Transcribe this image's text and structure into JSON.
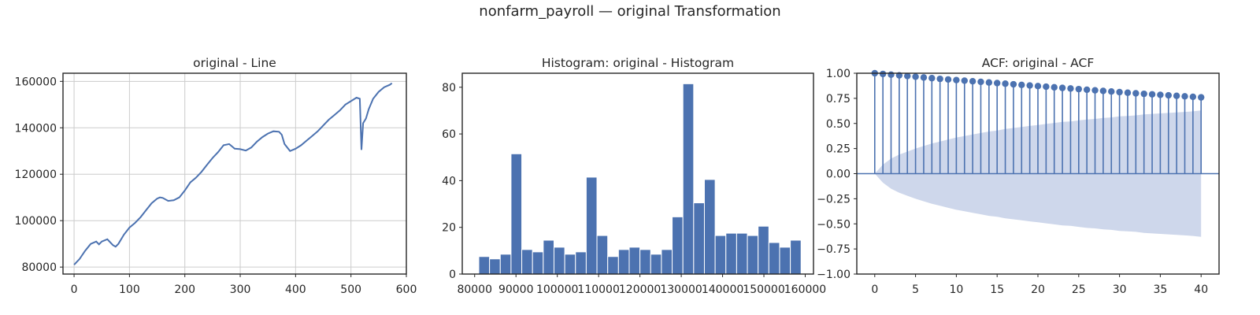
{
  "suptitle": "nonfarm_payroll — original Transformation",
  "colors": {
    "line": "#4c72b0",
    "bar": "#4c72b0",
    "band": "#c9d3e9",
    "grid": "#cccccc",
    "axis": "#262626"
  },
  "chart_data": [
    {
      "type": "line",
      "title": "original - Line",
      "xlim": [
        -20,
        600
      ],
      "ylim": [
        77000,
        163500
      ],
      "xticks": [
        0,
        100,
        200,
        300,
        400,
        500,
        600
      ],
      "yticks": [
        80000,
        100000,
        120000,
        140000,
        160000
      ],
      "grid": true,
      "series": [
        {
          "x": [
            0,
            10,
            20,
            30,
            40,
            45,
            50,
            60,
            70,
            75,
            80,
            90,
            100,
            110,
            120,
            130,
            140,
            150,
            155,
            160,
            170,
            180,
            190,
            200,
            210,
            220,
            230,
            240,
            250,
            260,
            270,
            280,
            290,
            300,
            310,
            320,
            330,
            340,
            350,
            360,
            370,
            375,
            380,
            390,
            400,
            410,
            420,
            430,
            440,
            450,
            460,
            470,
            480,
            490,
            500,
            510,
            516,
            519,
            522,
            527,
            532,
            540,
            550,
            560,
            570,
            574
          ],
          "y": [
            81000,
            83500,
            87000,
            90000,
            91000,
            89800,
            91000,
            92000,
            89500,
            88800,
            90000,
            94000,
            97000,
            99000,
            101500,
            104500,
            107500,
            109500,
            110000,
            109800,
            108500,
            108800,
            110000,
            113000,
            116500,
            118500,
            121000,
            124000,
            127000,
            129500,
            132500,
            133000,
            131000,
            130800,
            130200,
            131500,
            134000,
            136000,
            137500,
            138500,
            138300,
            137000,
            133000,
            130000,
            131000,
            132500,
            134500,
            136500,
            138500,
            141000,
            143500,
            145500,
            147500,
            150000,
            151500,
            153000,
            152500,
            130500,
            142000,
            144000,
            148000,
            152500,
            155500,
            157500,
            158500,
            159200
          ]
        }
      ]
    },
    {
      "type": "bar",
      "title": "Histogram: original - Histogram",
      "xlim": [
        77000,
        162000
      ],
      "ylim": [
        0,
        86
      ],
      "xticks": [
        80000,
        90000,
        100000,
        110000,
        120000,
        130000,
        140000,
        150000,
        160000
      ],
      "yticks": [
        0,
        20,
        40,
        60,
        80
      ],
      "grid": false,
      "bin_start": 81000,
      "bin_width": 2600,
      "values": [
        7.5,
        6.5,
        8.5,
        51.5,
        10.5,
        9.5,
        14.5,
        11.5,
        8.5,
        9.5,
        41.5,
        16.5,
        7.5,
        10.5,
        11.5,
        10.5,
        8.5,
        10.5,
        24.5,
        81.5,
        30.5,
        40.5,
        16.5,
        17.5,
        17.5,
        16.5,
        20.5,
        13.5,
        11.5,
        14.5
      ]
    },
    {
      "type": "scatter",
      "title": "ACF: original - ACF",
      "xlim": [
        -2.2,
        42.2
      ],
      "ylim": [
        -1.0,
        1.0
      ],
      "xticks": [
        0,
        5,
        10,
        15,
        20,
        25,
        30,
        35,
        40
      ],
      "yticks": [
        -1.0,
        -0.75,
        -0.5,
        -0.25,
        0.0,
        0.25,
        0.5,
        0.75,
        1.0
      ],
      "yticklabels": [
        "−1.00",
        "−0.75",
        "−0.50",
        "−0.25",
        "0.00",
        "0.25",
        "0.50",
        "0.75",
        "1.00"
      ],
      "grid": false,
      "lags": [
        0,
        1,
        2,
        3,
        4,
        5,
        6,
        7,
        8,
        9,
        10,
        11,
        12,
        13,
        14,
        15,
        16,
        17,
        18,
        19,
        20,
        21,
        22,
        23,
        24,
        25,
        26,
        27,
        28,
        29,
        30,
        31,
        32,
        33,
        34,
        35,
        36,
        37,
        38,
        39,
        40
      ],
      "values": [
        1.0,
        0.993,
        0.986,
        0.979,
        0.972,
        0.965,
        0.958,
        0.951,
        0.944,
        0.938,
        0.932,
        0.926,
        0.92,
        0.914,
        0.908,
        0.902,
        0.896,
        0.89,
        0.884,
        0.878,
        0.872,
        0.866,
        0.86,
        0.854,
        0.848,
        0.842,
        0.836,
        0.83,
        0.824,
        0.818,
        0.812,
        0.806,
        0.8,
        0.795,
        0.79,
        0.785,
        0.78,
        0.775,
        0.77,
        0.765,
        0.76
      ],
      "confidence_upper": [
        0.0,
        0.09,
        0.15,
        0.19,
        0.22,
        0.25,
        0.275,
        0.3,
        0.32,
        0.34,
        0.36,
        0.375,
        0.39,
        0.405,
        0.42,
        0.43,
        0.445,
        0.455,
        0.465,
        0.475,
        0.485,
        0.495,
        0.505,
        0.515,
        0.52,
        0.53,
        0.54,
        0.545,
        0.555,
        0.56,
        0.57,
        0.575,
        0.58,
        0.59,
        0.595,
        0.6,
        0.605,
        0.61,
        0.615,
        0.62,
        0.63
      ]
    }
  ]
}
